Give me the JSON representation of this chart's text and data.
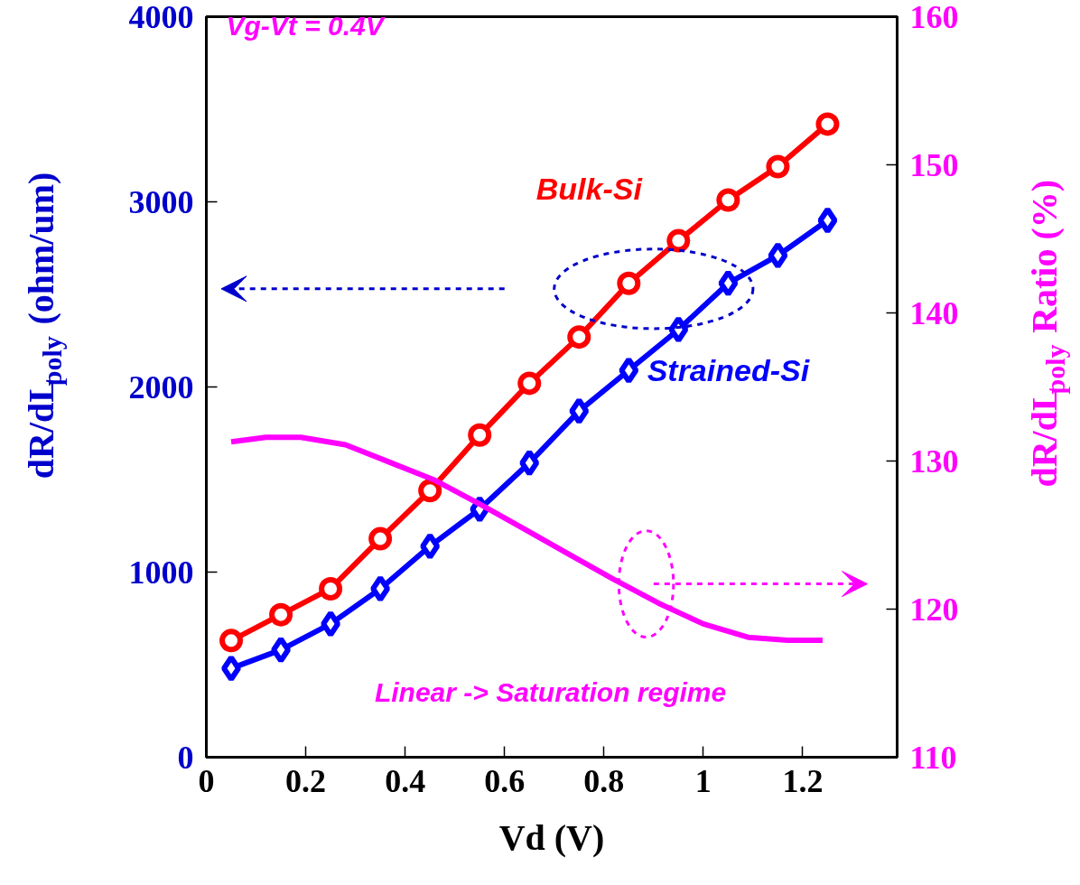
{
  "chart_data": {
    "type": "line",
    "xlabel": "Vd (V)",
    "ylabel": "dR/dL$_{poly}$ (ohm/um)",
    "y2label": "dR/dL$_{poly}$ Ratio (%)",
    "xlim": [
      0,
      1.39
    ],
    "xticks": [
      0,
      0.2,
      0.4,
      0.6,
      0.8,
      1,
      1.2
    ],
    "ylim": [
      0,
      4000
    ],
    "yticks": [
      0,
      1000,
      2000,
      3000,
      4000
    ],
    "y2lim": [
      110,
      160
    ],
    "y2ticks": [
      110,
      120,
      130,
      140,
      150,
      160
    ],
    "x": [
      0.05,
      0.15,
      0.25,
      0.35,
      0.45,
      0.55,
      0.65,
      0.75,
      0.85,
      0.95,
      1.05,
      1.15,
      1.25
    ],
    "series": [
      {
        "name": "Bulk-Si",
        "color": "#ff0000",
        "marker": "circle",
        "values": [
          630,
          770,
          910,
          1180,
          1440,
          1740,
          2020,
          2270,
          2560,
          2790,
          3010,
          3190,
          3420
        ]
      },
      {
        "name": "Strained-Si",
        "color": "#0000ff",
        "marker": "diamond",
        "values": [
          480,
          580,
          720,
          910,
          1140,
          1340,
          1590,
          1870,
          2090,
          2310,
          2560,
          2710,
          2900
        ]
      },
      {
        "color": "#ff00ff",
        "marker": "none",
        "axis": "y2",
        "x": [
          0.05,
          0.12,
          0.19,
          0.28,
          0.37,
          0.46,
          0.55,
          0.64,
          0.73,
          0.82,
          0.91,
          1.0,
          1.09,
          1.17,
          1.24
        ],
        "values": [
          131.3,
          131.6,
          131.6,
          131.1,
          129.9,
          128.7,
          127.1,
          125.4,
          123.7,
          122.0,
          120.4,
          119.0,
          118.1,
          117.9,
          117.9
        ]
      }
    ],
    "annotations": [
      "Vg-Vt = 0.4V",
      "Linear  -> Saturation regime"
    ],
    "grid": false
  }
}
